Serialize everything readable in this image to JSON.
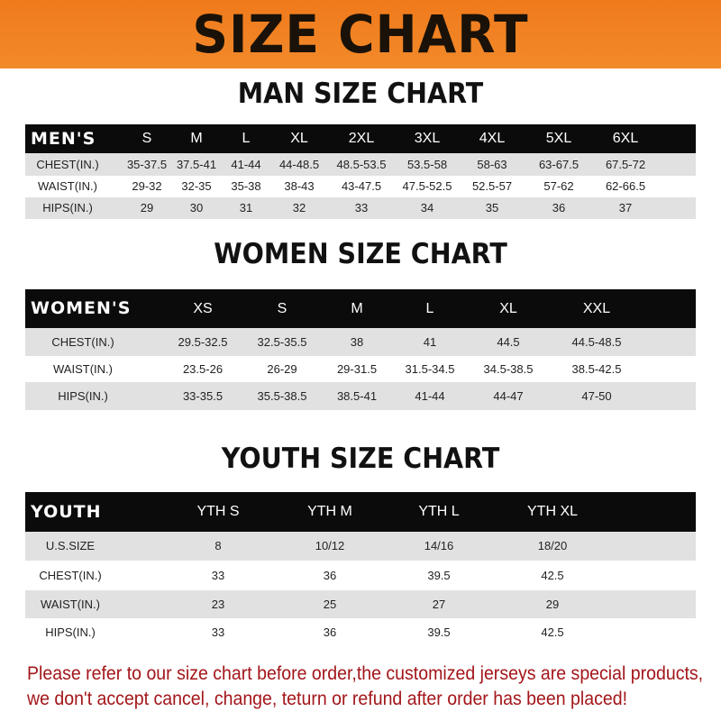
{
  "banner_title": "SIZE CHART",
  "tables": [
    {
      "title": "MAN SIZE CHART",
      "header": [
        "MEN'S",
        "S",
        "M",
        "L",
        "XL",
        "2XL",
        "3XL",
        "4XL",
        "5XL",
        "6XL"
      ],
      "rows": [
        [
          "CHEST(IN.)",
          "35-37.5",
          "37.5-41",
          "41-44",
          "44-48.5",
          "48.5-53.5",
          "53.5-58",
          "58-63",
          "63-67.5",
          "67.5-72"
        ],
        [
          "WAIST(IN.)",
          "29-32",
          "32-35",
          "35-38",
          "38-43",
          "43-47.5",
          "47.5-52.5",
          "52.5-57",
          "57-62",
          "62-66.5"
        ],
        [
          "HIPS(IN.)",
          "29",
          "30",
          "31",
          "32",
          "33",
          "34",
          "35",
          "36",
          "37"
        ]
      ]
    },
    {
      "title": "WOMEN SIZE CHART",
      "header": [
        "WOMEN'S",
        "XS",
        "S",
        "M",
        "L",
        "XL",
        "XXL"
      ],
      "rows": [
        [
          "CHEST(IN.)",
          "29.5-32.5",
          "32.5-35.5",
          "38",
          "41",
          "44.5",
          "44.5-48.5"
        ],
        [
          "WAIST(IN.)",
          "23.5-26",
          "26-29",
          "29-31.5",
          "31.5-34.5",
          "34.5-38.5",
          "38.5-42.5"
        ],
        [
          "HIPS(IN.)",
          "33-35.5",
          "35.5-38.5",
          "38.5-41",
          "41-44",
          "44-47",
          "47-50"
        ]
      ]
    },
    {
      "title": "YOUTH SIZE CHART",
      "header": [
        "YOUTH",
        "YTH S",
        "YTH M",
        "YTH L",
        "YTH XL"
      ],
      "rows": [
        [
          "U.S.SIZE",
          "8",
          "10/12",
          "14/16",
          "18/20"
        ],
        [
          "CHEST(IN.)",
          "33",
          "36",
          "39.5",
          "42.5"
        ],
        [
          "WAIST(IN.)",
          "23",
          "25",
          "27",
          "29"
        ],
        [
          "HIPS(IN.)",
          "33",
          "36",
          "39.5",
          "42.5"
        ]
      ]
    }
  ],
  "note_line1": "Please refer to our size chart before order,the customized jerseys are special products,",
  "note_line2": "we don't accept cancel, change, teturn or refund after order has been placed!",
  "colors": {
    "banner": "#f07a1c",
    "header_bg": "#0b0b0b",
    "stripe": "#e1e1e1",
    "note": "#a3161a"
  }
}
